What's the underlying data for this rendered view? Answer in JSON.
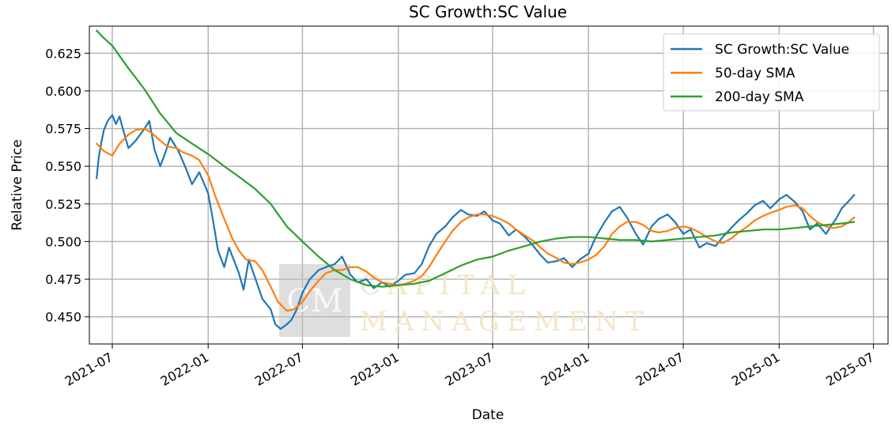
{
  "chart_data": {
    "type": "line",
    "title": "SC Growth:SC Value",
    "xlabel": "Date",
    "ylabel": "Relative Price",
    "xlim": [
      "2021-05-18",
      "2025-07-29"
    ],
    "ylim": [
      0.432,
      0.643
    ],
    "x_ticks": [
      "2021-07",
      "2022-01",
      "2022-07",
      "2023-01",
      "2023-07",
      "2024-01",
      "2024-07",
      "2025-01",
      "2025-07"
    ],
    "y_ticks": [
      "0.450",
      "0.475",
      "0.500",
      "0.525",
      "0.550",
      "0.575",
      "0.600",
      "0.625"
    ],
    "grid": true,
    "legend_position": "top-right",
    "series": [
      {
        "name": "SC Growth:SC Value",
        "color": "#1f77b4",
        "points": [
          [
            "2021-06-01",
            0.542
          ],
          [
            "2021-06-05",
            0.556
          ],
          [
            "2021-06-10",
            0.566
          ],
          [
            "2021-06-15",
            0.574
          ],
          [
            "2021-06-22",
            0.58
          ],
          [
            "2021-07-01",
            0.584
          ],
          [
            "2021-07-08",
            0.578
          ],
          [
            "2021-07-15",
            0.583
          ],
          [
            "2021-07-22",
            0.574
          ],
          [
            "2021-08-01",
            0.562
          ],
          [
            "2021-08-15",
            0.567
          ],
          [
            "2021-09-01",
            0.575
          ],
          [
            "2021-09-10",
            0.58
          ],
          [
            "2021-09-20",
            0.561
          ],
          [
            "2021-10-01",
            0.55
          ],
          [
            "2021-10-10",
            0.558
          ],
          [
            "2021-10-20",
            0.569
          ],
          [
            "2021-11-05",
            0.56
          ],
          [
            "2021-11-20",
            0.548
          ],
          [
            "2021-12-01",
            0.538
          ],
          [
            "2021-12-15",
            0.546
          ],
          [
            "2022-01-01",
            0.532
          ],
          [
            "2022-01-10",
            0.515
          ],
          [
            "2022-01-20",
            0.494
          ],
          [
            "2022-02-01",
            0.483
          ],
          [
            "2022-02-10",
            0.496
          ],
          [
            "2022-02-20",
            0.487
          ],
          [
            "2022-03-01",
            0.479
          ],
          [
            "2022-03-10",
            0.468
          ],
          [
            "2022-03-20",
            0.488
          ],
          [
            "2022-04-01",
            0.476
          ],
          [
            "2022-04-15",
            0.462
          ],
          [
            "2022-05-01",
            0.455
          ],
          [
            "2022-05-10",
            0.445
          ],
          [
            "2022-05-20",
            0.442
          ],
          [
            "2022-06-01",
            0.445
          ],
          [
            "2022-06-10",
            0.448
          ],
          [
            "2022-06-20",
            0.455
          ],
          [
            "2022-07-01",
            0.466
          ],
          [
            "2022-07-15",
            0.475
          ],
          [
            "2022-08-01",
            0.481
          ],
          [
            "2022-08-15",
            0.483
          ],
          [
            "2022-09-01",
            0.485
          ],
          [
            "2022-09-15",
            0.49
          ],
          [
            "2022-10-01",
            0.478
          ],
          [
            "2022-10-15",
            0.473
          ],
          [
            "2022-11-01",
            0.475
          ],
          [
            "2022-11-15",
            0.469
          ],
          [
            "2022-12-01",
            0.473
          ],
          [
            "2022-12-15",
            0.47
          ],
          [
            "2023-01-01",
            0.474
          ],
          [
            "2023-01-15",
            0.478
          ],
          [
            "2023-02-01",
            0.479
          ],
          [
            "2023-02-15",
            0.485
          ],
          [
            "2023-03-01",
            0.497
          ],
          [
            "2023-03-15",
            0.505
          ],
          [
            "2023-04-01",
            0.51
          ],
          [
            "2023-04-15",
            0.516
          ],
          [
            "2023-05-01",
            0.521
          ],
          [
            "2023-05-15",
            0.518
          ],
          [
            "2023-06-01",
            0.517
          ],
          [
            "2023-06-15",
            0.52
          ],
          [
            "2023-07-01",
            0.514
          ],
          [
            "2023-07-15",
            0.512
          ],
          [
            "2023-08-01",
            0.504
          ],
          [
            "2023-08-15",
            0.508
          ],
          [
            "2023-09-01",
            0.503
          ],
          [
            "2023-09-15",
            0.498
          ],
          [
            "2023-10-01",
            0.491
          ],
          [
            "2023-10-15",
            0.486
          ],
          [
            "2023-11-01",
            0.487
          ],
          [
            "2023-11-15",
            0.489
          ],
          [
            "2023-12-01",
            0.483
          ],
          [
            "2023-12-15",
            0.488
          ],
          [
            "2024-01-01",
            0.492
          ],
          [
            "2024-01-15",
            0.503
          ],
          [
            "2024-02-01",
            0.513
          ],
          [
            "2024-02-15",
            0.52
          ],
          [
            "2024-03-01",
            0.523
          ],
          [
            "2024-03-15",
            0.516
          ],
          [
            "2024-04-01",
            0.505
          ],
          [
            "2024-04-15",
            0.498
          ],
          [
            "2024-05-01",
            0.51
          ],
          [
            "2024-05-15",
            0.515
          ],
          [
            "2024-06-01",
            0.518
          ],
          [
            "2024-06-15",
            0.513
          ],
          [
            "2024-07-01",
            0.505
          ],
          [
            "2024-07-15",
            0.508
          ],
          [
            "2024-08-01",
            0.496
          ],
          [
            "2024-08-15",
            0.499
          ],
          [
            "2024-09-01",
            0.497
          ],
          [
            "2024-09-15",
            0.503
          ],
          [
            "2024-10-01",
            0.509
          ],
          [
            "2024-10-15",
            0.514
          ],
          [
            "2024-11-01",
            0.519
          ],
          [
            "2024-11-15",
            0.524
          ],
          [
            "2024-12-01",
            0.527
          ],
          [
            "2024-12-15",
            0.522
          ],
          [
            "2025-01-01",
            0.528
          ],
          [
            "2025-01-15",
            0.531
          ],
          [
            "2025-02-01",
            0.526
          ],
          [
            "2025-02-15",
            0.52
          ],
          [
            "2025-03-01",
            0.508
          ],
          [
            "2025-03-15",
            0.512
          ],
          [
            "2025-04-01",
            0.505
          ],
          [
            "2025-04-10",
            0.51
          ],
          [
            "2025-04-20",
            0.515
          ],
          [
            "2025-05-01",
            0.522
          ],
          [
            "2025-05-15",
            0.527
          ],
          [
            "2025-05-25",
            0.531
          ]
        ]
      },
      {
        "name": "50-day SMA",
        "color": "#ff7f0e",
        "points": [
          [
            "2021-06-01",
            0.565
          ],
          [
            "2021-06-15",
            0.56
          ],
          [
            "2021-07-01",
            0.557
          ],
          [
            "2021-07-15",
            0.565
          ],
          [
            "2021-08-01",
            0.571
          ],
          [
            "2021-08-15",
            0.574
          ],
          [
            "2021-09-01",
            0.575
          ],
          [
            "2021-09-15",
            0.572
          ],
          [
            "2021-10-01",
            0.567
          ],
          [
            "2021-10-15",
            0.563
          ],
          [
            "2021-11-01",
            0.562
          ],
          [
            "2021-11-15",
            0.559
          ],
          [
            "2021-12-01",
            0.557
          ],
          [
            "2021-12-15",
            0.554
          ],
          [
            "2022-01-01",
            0.544
          ],
          [
            "2022-01-15",
            0.53
          ],
          [
            "2022-02-01",
            0.515
          ],
          [
            "2022-02-15",
            0.503
          ],
          [
            "2022-03-01",
            0.494
          ],
          [
            "2022-03-15",
            0.488
          ],
          [
            "2022-04-01",
            0.487
          ],
          [
            "2022-04-15",
            0.481
          ],
          [
            "2022-05-01",
            0.47
          ],
          [
            "2022-05-15",
            0.46
          ],
          [
            "2022-06-01",
            0.454
          ],
          [
            "2022-06-15",
            0.455
          ],
          [
            "2022-07-01",
            0.46
          ],
          [
            "2022-07-15",
            0.467
          ],
          [
            "2022-08-01",
            0.474
          ],
          [
            "2022-08-15",
            0.479
          ],
          [
            "2022-09-01",
            0.481
          ],
          [
            "2022-09-15",
            0.481
          ],
          [
            "2022-10-01",
            0.483
          ],
          [
            "2022-10-15",
            0.483
          ],
          [
            "2022-11-01",
            0.48
          ],
          [
            "2022-11-15",
            0.476
          ],
          [
            "2022-12-01",
            0.473
          ],
          [
            "2022-12-15",
            0.472
          ],
          [
            "2023-01-01",
            0.471
          ],
          [
            "2023-01-15",
            0.472
          ],
          [
            "2023-02-01",
            0.474
          ],
          [
            "2023-02-15",
            0.477
          ],
          [
            "2023-03-01",
            0.483
          ],
          [
            "2023-03-15",
            0.491
          ],
          [
            "2023-04-01",
            0.5
          ],
          [
            "2023-04-15",
            0.507
          ],
          [
            "2023-05-01",
            0.513
          ],
          [
            "2023-05-15",
            0.516
          ],
          [
            "2023-06-01",
            0.518
          ],
          [
            "2023-06-15",
            0.518
          ],
          [
            "2023-07-01",
            0.517
          ],
          [
            "2023-07-15",
            0.515
          ],
          [
            "2023-08-01",
            0.512
          ],
          [
            "2023-08-15",
            0.508
          ],
          [
            "2023-09-01",
            0.504
          ],
          [
            "2023-09-15",
            0.501
          ],
          [
            "2023-10-01",
            0.496
          ],
          [
            "2023-10-15",
            0.492
          ],
          [
            "2023-11-01",
            0.489
          ],
          [
            "2023-11-15",
            0.486
          ],
          [
            "2023-12-01",
            0.485
          ],
          [
            "2023-12-15",
            0.486
          ],
          [
            "2024-01-01",
            0.488
          ],
          [
            "2024-01-15",
            0.491
          ],
          [
            "2024-02-01",
            0.497
          ],
          [
            "2024-02-15",
            0.505
          ],
          [
            "2024-03-01",
            0.51
          ],
          [
            "2024-03-15",
            0.513
          ],
          [
            "2024-04-01",
            0.513
          ],
          [
            "2024-04-15",
            0.511
          ],
          [
            "2024-05-01",
            0.507
          ],
          [
            "2024-05-15",
            0.506
          ],
          [
            "2024-06-01",
            0.507
          ],
          [
            "2024-06-15",
            0.509
          ],
          [
            "2024-07-01",
            0.51
          ],
          [
            "2024-07-15",
            0.509
          ],
          [
            "2024-08-01",
            0.506
          ],
          [
            "2024-08-15",
            0.503
          ],
          [
            "2024-09-01",
            0.5
          ],
          [
            "2024-09-15",
            0.499
          ],
          [
            "2024-10-01",
            0.502
          ],
          [
            "2024-10-15",
            0.506
          ],
          [
            "2024-11-01",
            0.51
          ],
          [
            "2024-11-15",
            0.514
          ],
          [
            "2024-12-01",
            0.517
          ],
          [
            "2024-12-15",
            0.519
          ],
          [
            "2025-01-01",
            0.521
          ],
          [
            "2025-01-15",
            0.523
          ],
          [
            "2025-02-01",
            0.524
          ],
          [
            "2025-02-15",
            0.522
          ],
          [
            "2025-03-01",
            0.517
          ],
          [
            "2025-03-15",
            0.513
          ],
          [
            "2025-04-01",
            0.51
          ],
          [
            "2025-04-15",
            0.509
          ],
          [
            "2025-05-01",
            0.51
          ],
          [
            "2025-05-15",
            0.513
          ],
          [
            "2025-05-25",
            0.516
          ]
        ]
      },
      {
        "name": "200-day SMA",
        "color": "#2ca02c",
        "points": [
          [
            "2021-06-01",
            0.64
          ],
          [
            "2021-06-15",
            0.635
          ],
          [
            "2021-07-01",
            0.63
          ],
          [
            "2021-08-01",
            0.615
          ],
          [
            "2021-09-01",
            0.601
          ],
          [
            "2021-10-01",
            0.585
          ],
          [
            "2021-11-01",
            0.572
          ],
          [
            "2021-12-01",
            0.565
          ],
          [
            "2022-01-01",
            0.558
          ],
          [
            "2022-02-01",
            0.55
          ],
          [
            "2022-03-01",
            0.543
          ],
          [
            "2022-04-01",
            0.535
          ],
          [
            "2022-05-01",
            0.525
          ],
          [
            "2022-06-01",
            0.51
          ],
          [
            "2022-07-01",
            0.5
          ],
          [
            "2022-08-01",
            0.49
          ],
          [
            "2022-09-01",
            0.481
          ],
          [
            "2022-10-01",
            0.475
          ],
          [
            "2022-11-01",
            0.471
          ],
          [
            "2022-12-01",
            0.47
          ],
          [
            "2023-01-01",
            0.471
          ],
          [
            "2023-02-01",
            0.472
          ],
          [
            "2023-03-01",
            0.474
          ],
          [
            "2023-04-01",
            0.479
          ],
          [
            "2023-05-01",
            0.484
          ],
          [
            "2023-06-01",
            0.488
          ],
          [
            "2023-07-01",
            0.49
          ],
          [
            "2023-08-01",
            0.494
          ],
          [
            "2023-09-01",
            0.497
          ],
          [
            "2023-10-01",
            0.5
          ],
          [
            "2023-11-01",
            0.502
          ],
          [
            "2023-12-01",
            0.503
          ],
          [
            "2024-01-01",
            0.503
          ],
          [
            "2024-02-01",
            0.502
          ],
          [
            "2024-03-01",
            0.501
          ],
          [
            "2024-04-01",
            0.501
          ],
          [
            "2024-05-01",
            0.5
          ],
          [
            "2024-06-01",
            0.501
          ],
          [
            "2024-07-01",
            0.502
          ],
          [
            "2024-08-01",
            0.503
          ],
          [
            "2024-09-01",
            0.504
          ],
          [
            "2024-10-01",
            0.506
          ],
          [
            "2024-11-01",
            0.507
          ],
          [
            "2024-12-01",
            0.508
          ],
          [
            "2025-01-01",
            0.508
          ],
          [
            "2025-02-01",
            0.509
          ],
          [
            "2025-03-01",
            0.51
          ],
          [
            "2025-04-01",
            0.511
          ],
          [
            "2025-05-01",
            0.512
          ],
          [
            "2025-05-25",
            0.513
          ]
        ]
      }
    ]
  },
  "watermark": {
    "monogram": "CM",
    "line1": "CAPITAL",
    "line2": "MANAGEMENT"
  }
}
